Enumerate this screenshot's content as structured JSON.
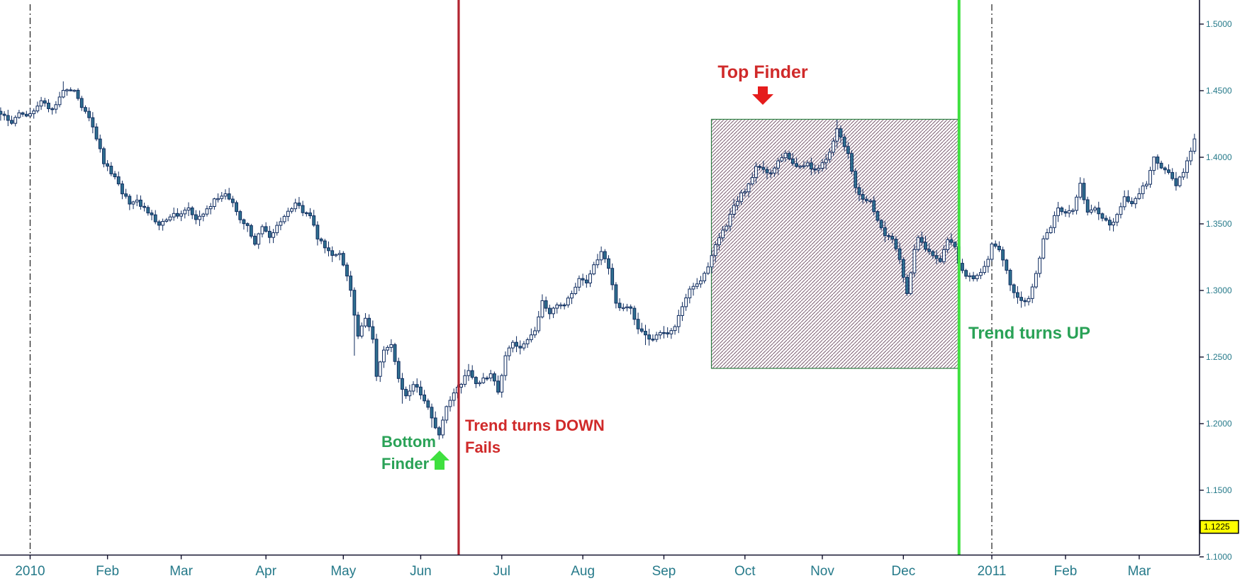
{
  "chart_data": {
    "type": "candlestick",
    "title": "",
    "x_axis_months": [
      {
        "label": "2010",
        "day": 0
      },
      {
        "label": "Feb",
        "day": 21
      },
      {
        "label": "Mar",
        "day": 41
      },
      {
        "label": "Apr",
        "day": 64
      },
      {
        "label": "May",
        "day": 85
      },
      {
        "label": "Jun",
        "day": 106
      },
      {
        "label": "Jul",
        "day": 128
      },
      {
        "label": "Aug",
        "day": 150
      },
      {
        "label": "Sep",
        "day": 172
      },
      {
        "label": "Oct",
        "day": 194
      },
      {
        "label": "Nov",
        "day": 215
      },
      {
        "label": "Dec",
        "day": 237
      },
      {
        "label": "2011",
        "day": 261
      },
      {
        "label": "Feb",
        "day": 281
      },
      {
        "label": "Mar",
        "day": 301
      }
    ],
    "y_axis_labels": [
      {
        "text": "1.5000",
        "value": 1.5
      },
      {
        "text": "1.4500",
        "value": 1.45
      },
      {
        "text": "1.4000",
        "value": 1.4
      },
      {
        "text": "1.3500",
        "value": 1.35
      },
      {
        "text": "1.3000",
        "value": 1.3
      },
      {
        "text": "1.2500",
        "value": 1.25
      },
      {
        "text": "1.2000",
        "value": 1.2
      },
      {
        "text": "1.1500",
        "value": 1.15
      },
      {
        "text": "1.1000",
        "value": 1.1
      }
    ],
    "ylim": [
      1.1,
      1.5
    ],
    "grid": false,
    "price_tag": {
      "text": "1.1225",
      "value": 1.1225
    },
    "day_start": -8,
    "days_total": 318,
    "anchors": [
      [
        -8,
        1.433
      ],
      [
        -5,
        1.426
      ],
      [
        -3,
        1.433
      ],
      [
        -1,
        1.431
      ],
      [
        0,
        1.432
      ],
      [
        3,
        1.441
      ],
      [
        6,
        1.436
      ],
      [
        9,
        1.449
      ],
      [
        12,
        1.45
      ],
      [
        14,
        1.438
      ],
      [
        16,
        1.429
      ],
      [
        18,
        1.414
      ],
      [
        20,
        1.396
      ],
      [
        23,
        1.384
      ],
      [
        25,
        1.374
      ],
      [
        27,
        1.365
      ],
      [
        29,
        1.368
      ],
      [
        31,
        1.361
      ],
      [
        33,
        1.356
      ],
      [
        35,
        1.35
      ],
      [
        38,
        1.356
      ],
      [
        40,
        1.357
      ],
      [
        43,
        1.362
      ],
      [
        45,
        1.353
      ],
      [
        47,
        1.356
      ],
      [
        50,
        1.368
      ],
      [
        53,
        1.374
      ],
      [
        55,
        1.365
      ],
      [
        57,
        1.353
      ],
      [
        59,
        1.348
      ],
      [
        61,
        1.336
      ],
      [
        63,
        1.348
      ],
      [
        65,
        1.34
      ],
      [
        67,
        1.348
      ],
      [
        70,
        1.358
      ],
      [
        72,
        1.366
      ],
      [
        74,
        1.359
      ],
      [
        76,
        1.357
      ],
      [
        78,
        1.339
      ],
      [
        80,
        1.333
      ],
      [
        82,
        1.325
      ],
      [
        84,
        1.329
      ],
      [
        85,
        1.32
      ],
      [
        87,
        1.301
      ],
      [
        88,
        1.282
      ],
      [
        89,
        1.265
      ],
      [
        91,
        1.28
      ],
      [
        93,
        1.263
      ],
      [
        94,
        1.236
      ],
      [
        96,
        1.254
      ],
      [
        98,
        1.258
      ],
      [
        100,
        1.234
      ],
      [
        102,
        1.22
      ],
      [
        104,
        1.23
      ],
      [
        106,
        1.222
      ],
      [
        108,
        1.211
      ],
      [
        110,
        1.198
      ],
      [
        111,
        1.192
      ],
      [
        113,
        1.212
      ],
      [
        115,
        1.223
      ],
      [
        117,
        1.231
      ],
      [
        119,
        1.239
      ],
      [
        121,
        1.231
      ],
      [
        123,
        1.233
      ],
      [
        125,
        1.238
      ],
      [
        127,
        1.223
      ],
      [
        129,
        1.252
      ],
      [
        131,
        1.262
      ],
      [
        133,
        1.256
      ],
      [
        135,
        1.264
      ],
      [
        137,
        1.27
      ],
      [
        139,
        1.293
      ],
      [
        141,
        1.282
      ],
      [
        143,
        1.289
      ],
      [
        145,
        1.29
      ],
      [
        147,
        1.299
      ],
      [
        149,
        1.308
      ],
      [
        151,
        1.305
      ],
      [
        153,
        1.318
      ],
      [
        155,
        1.328
      ],
      [
        157,
        1.318
      ],
      [
        159,
        1.289
      ],
      [
        161,
        1.288
      ],
      [
        163,
        1.286
      ],
      [
        165,
        1.271
      ],
      [
        167,
        1.266
      ],
      [
        169,
        1.263
      ],
      [
        171,
        1.268
      ],
      [
        173,
        1.268
      ],
      [
        175,
        1.273
      ],
      [
        177,
        1.287
      ],
      [
        179,
        1.3
      ],
      [
        181,
        1.304
      ],
      [
        183,
        1.312
      ],
      [
        185,
        1.326
      ],
      [
        187,
        1.34
      ],
      [
        189,
        1.349
      ],
      [
        191,
        1.363
      ],
      [
        193,
        1.372
      ],
      [
        195,
        1.379
      ],
      [
        197,
        1.393
      ],
      [
        199,
        1.391
      ],
      [
        201,
        1.388
      ],
      [
        203,
        1.397
      ],
      [
        205,
        1.403
      ],
      [
        207,
        1.396
      ],
      [
        209,
        1.392
      ],
      [
        211,
        1.396
      ],
      [
        213,
        1.389
      ],
      [
        215,
        1.395
      ],
      [
        217,
        1.403
      ],
      [
        219,
        1.421
      ],
      [
        220,
        1.414
      ],
      [
        222,
        1.403
      ],
      [
        224,
        1.377
      ],
      [
        226,
        1.369
      ],
      [
        228,
        1.366
      ],
      [
        230,
        1.353
      ],
      [
        232,
        1.342
      ],
      [
        234,
        1.337
      ],
      [
        236,
        1.324
      ],
      [
        238,
        1.298
      ],
      [
        239,
        1.314
      ],
      [
        240,
        1.332
      ],
      [
        241,
        1.341
      ],
      [
        243,
        1.33
      ],
      [
        245,
        1.326
      ],
      [
        247,
        1.323
      ],
      [
        249,
        1.338
      ],
      [
        251,
        1.332
      ],
      [
        252,
        1.319
      ],
      [
        254,
        1.312
      ],
      [
        256,
        1.31
      ],
      [
        258,
        1.315
      ],
      [
        260,
        1.322
      ],
      [
        261,
        1.336
      ],
      [
        263,
        1.33
      ],
      [
        265,
        1.314
      ],
      [
        267,
        1.297
      ],
      [
        269,
        1.291
      ],
      [
        271,
        1.295
      ],
      [
        273,
        1.312
      ],
      [
        275,
        1.338
      ],
      [
        277,
        1.348
      ],
      [
        279,
        1.362
      ],
      [
        281,
        1.358
      ],
      [
        283,
        1.361
      ],
      [
        285,
        1.381
      ],
      [
        287,
        1.358
      ],
      [
        289,
        1.362
      ],
      [
        291,
        1.355
      ],
      [
        293,
        1.349
      ],
      [
        295,
        1.356
      ],
      [
        297,
        1.369
      ],
      [
        299,
        1.365
      ],
      [
        301,
        1.373
      ],
      [
        303,
        1.381
      ],
      [
        305,
        1.399
      ],
      [
        307,
        1.391
      ],
      [
        309,
        1.39
      ],
      [
        311,
        1.378
      ],
      [
        313,
        1.39
      ],
      [
        315,
        1.406
      ],
      [
        317,
        1.421
      ]
    ],
    "spikes": [
      {
        "day": 9,
        "high": 1.457
      },
      {
        "day": 12,
        "high": 1.451
      },
      {
        "day": 88,
        "low": 1.251
      },
      {
        "day": 94,
        "low": 1.232
      },
      {
        "day": 101,
        "low": 1.215
      },
      {
        "day": 109,
        "low": 1.197
      },
      {
        "day": 111,
        "low": 1.188
      },
      {
        "day": 155,
        "high": 1.333
      },
      {
        "day": 167,
        "low": 1.259
      },
      {
        "day": 219,
        "high": 1.4282
      },
      {
        "day": 238,
        "low": 1.296
      },
      {
        "day": 269,
        "low": 1.287
      },
      {
        "day": 305,
        "high": 1.3995
      },
      {
        "day": 317,
        "high": 1.424
      }
    ],
    "events": {
      "trend_down_line_day": 116.3,
      "trend_up_line_day": 252.1,
      "year_separator_days": [
        0,
        261
      ],
      "box": {
        "day_start": 184.9,
        "day_end": 252.1,
        "price_top": 1.4285,
        "price_bottom": 1.2415
      }
    },
    "annotations": {
      "top_finder": {
        "text": "Top Finder"
      },
      "bottom_finder": {
        "line1": "Bottom",
        "line2": "Finder"
      },
      "trend_down": {
        "line1": "Trend turns DOWN",
        "line2": "Fails"
      },
      "trend_up": {
        "text": "Trend turns UP"
      }
    },
    "colors": {
      "candle_outline": "#0d2a5e",
      "candle_down_fill": "#2f7090",
      "candle_up_fill": "#ffffff",
      "axis_line": "#12122e",
      "axis_text": "#267a8a",
      "red_line": "#b22430",
      "red_text": "#d02a2a",
      "red_arrow": "#e51c1c",
      "green_line": "#3fe03f",
      "green_text": "#2aa257",
      "green_arrow": "#3fe03f",
      "box_border": "#2e7d42",
      "box_hatch": "#6b4f62",
      "box_bg": "#fdf9fb",
      "year_line": "#1c1c1c",
      "tag_bg": "#ffff00",
      "tag_border": "#000000",
      "tag_text": "#000000"
    }
  }
}
